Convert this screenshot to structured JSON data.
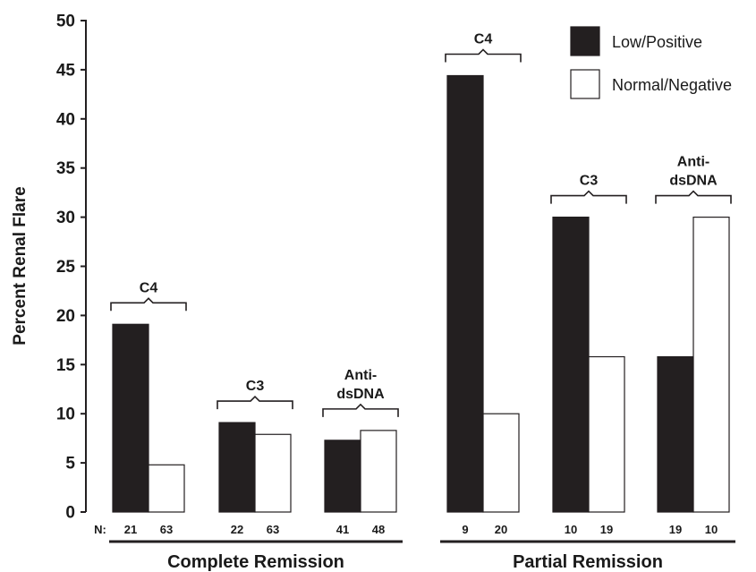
{
  "chart_data": {
    "type": "bar",
    "ylabel": "Percent Renal Flare",
    "ylim": [
      0,
      50
    ],
    "yticks": [
      0,
      5,
      10,
      15,
      20,
      25,
      30,
      35,
      40,
      45,
      50
    ],
    "n_prefix": "N:",
    "legend": {
      "position": "top-right",
      "entries": [
        {
          "label": "Low/Positive",
          "color": "#231f20"
        },
        {
          "label": "Normal/Negative",
          "color": "#ffffff"
        }
      ]
    },
    "sections": [
      {
        "label": "Complete Remission",
        "groups": [
          {
            "label_lines": [
              "C4"
            ],
            "values": [
              19.1,
              4.8
            ],
            "n": [
              "21",
              "63"
            ]
          },
          {
            "label_lines": [
              "C3"
            ],
            "values": [
              9.1,
              7.9
            ],
            "n": [
              "22",
              "63"
            ]
          },
          {
            "label_lines": [
              "Anti-",
              "dsDNA"
            ],
            "values": [
              7.3,
              8.3
            ],
            "n": [
              "41",
              "48"
            ]
          }
        ]
      },
      {
        "label": "Partial Remission",
        "groups": [
          {
            "label_lines": [
              "C4"
            ],
            "values": [
              44.4,
              10.0
            ],
            "n": [
              "9",
              "20"
            ]
          },
          {
            "label_lines": [
              "C3"
            ],
            "values": [
              30.0,
              15.8
            ],
            "n": [
              "10",
              "19"
            ]
          },
          {
            "label_lines": [
              "Anti-",
              "dsDNA"
            ],
            "values": [
              15.8,
              30.0
            ],
            "n": [
              "19",
              "10"
            ]
          }
        ]
      }
    ]
  }
}
